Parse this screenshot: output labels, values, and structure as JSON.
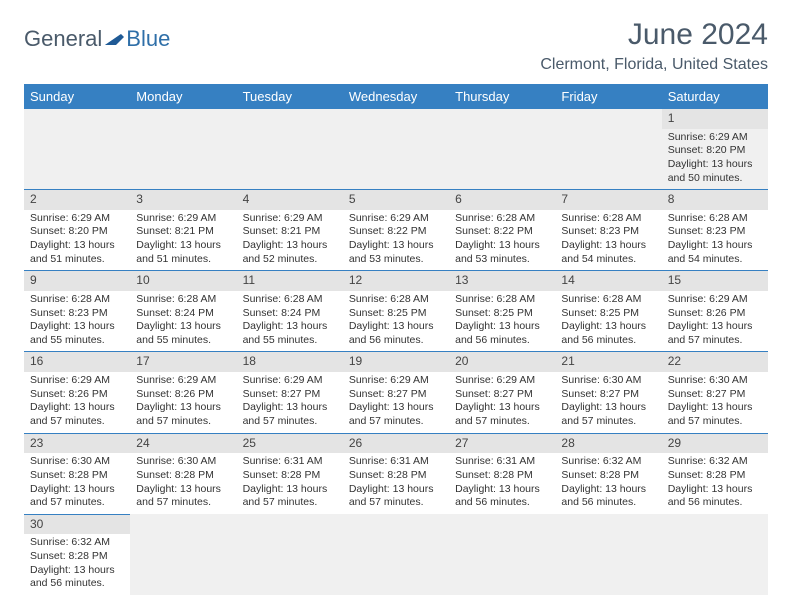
{
  "logo": {
    "text1": "General",
    "text2": "Blue"
  },
  "title": "June 2024",
  "location": "Clermont, Florida, United States",
  "header_color": "#3680c2",
  "day_headers": [
    "Sunday",
    "Monday",
    "Tuesday",
    "Wednesday",
    "Thursday",
    "Friday",
    "Saturday"
  ],
  "weeks": [
    [
      null,
      null,
      null,
      null,
      null,
      null,
      {
        "n": "1",
        "sr": "Sunrise: 6:29 AM",
        "ss": "Sunset: 8:20 PM",
        "d1": "Daylight: 13 hours",
        "d2": "and 50 minutes."
      }
    ],
    [
      {
        "n": "2",
        "sr": "Sunrise: 6:29 AM",
        "ss": "Sunset: 8:20 PM",
        "d1": "Daylight: 13 hours",
        "d2": "and 51 minutes."
      },
      {
        "n": "3",
        "sr": "Sunrise: 6:29 AM",
        "ss": "Sunset: 8:21 PM",
        "d1": "Daylight: 13 hours",
        "d2": "and 51 minutes."
      },
      {
        "n": "4",
        "sr": "Sunrise: 6:29 AM",
        "ss": "Sunset: 8:21 PM",
        "d1": "Daylight: 13 hours",
        "d2": "and 52 minutes."
      },
      {
        "n": "5",
        "sr": "Sunrise: 6:29 AM",
        "ss": "Sunset: 8:22 PM",
        "d1": "Daylight: 13 hours",
        "d2": "and 53 minutes."
      },
      {
        "n": "6",
        "sr": "Sunrise: 6:28 AM",
        "ss": "Sunset: 8:22 PM",
        "d1": "Daylight: 13 hours",
        "d2": "and 53 minutes."
      },
      {
        "n": "7",
        "sr": "Sunrise: 6:28 AM",
        "ss": "Sunset: 8:23 PM",
        "d1": "Daylight: 13 hours",
        "d2": "and 54 minutes."
      },
      {
        "n": "8",
        "sr": "Sunrise: 6:28 AM",
        "ss": "Sunset: 8:23 PM",
        "d1": "Daylight: 13 hours",
        "d2": "and 54 minutes."
      }
    ],
    [
      {
        "n": "9",
        "sr": "Sunrise: 6:28 AM",
        "ss": "Sunset: 8:23 PM",
        "d1": "Daylight: 13 hours",
        "d2": "and 55 minutes."
      },
      {
        "n": "10",
        "sr": "Sunrise: 6:28 AM",
        "ss": "Sunset: 8:24 PM",
        "d1": "Daylight: 13 hours",
        "d2": "and 55 minutes."
      },
      {
        "n": "11",
        "sr": "Sunrise: 6:28 AM",
        "ss": "Sunset: 8:24 PM",
        "d1": "Daylight: 13 hours",
        "d2": "and 55 minutes."
      },
      {
        "n": "12",
        "sr": "Sunrise: 6:28 AM",
        "ss": "Sunset: 8:25 PM",
        "d1": "Daylight: 13 hours",
        "d2": "and 56 minutes."
      },
      {
        "n": "13",
        "sr": "Sunrise: 6:28 AM",
        "ss": "Sunset: 8:25 PM",
        "d1": "Daylight: 13 hours",
        "d2": "and 56 minutes."
      },
      {
        "n": "14",
        "sr": "Sunrise: 6:28 AM",
        "ss": "Sunset: 8:25 PM",
        "d1": "Daylight: 13 hours",
        "d2": "and 56 minutes."
      },
      {
        "n": "15",
        "sr": "Sunrise: 6:29 AM",
        "ss": "Sunset: 8:26 PM",
        "d1": "Daylight: 13 hours",
        "d2": "and 57 minutes."
      }
    ],
    [
      {
        "n": "16",
        "sr": "Sunrise: 6:29 AM",
        "ss": "Sunset: 8:26 PM",
        "d1": "Daylight: 13 hours",
        "d2": "and 57 minutes."
      },
      {
        "n": "17",
        "sr": "Sunrise: 6:29 AM",
        "ss": "Sunset: 8:26 PM",
        "d1": "Daylight: 13 hours",
        "d2": "and 57 minutes."
      },
      {
        "n": "18",
        "sr": "Sunrise: 6:29 AM",
        "ss": "Sunset: 8:27 PM",
        "d1": "Daylight: 13 hours",
        "d2": "and 57 minutes."
      },
      {
        "n": "19",
        "sr": "Sunrise: 6:29 AM",
        "ss": "Sunset: 8:27 PM",
        "d1": "Daylight: 13 hours",
        "d2": "and 57 minutes."
      },
      {
        "n": "20",
        "sr": "Sunrise: 6:29 AM",
        "ss": "Sunset: 8:27 PM",
        "d1": "Daylight: 13 hours",
        "d2": "and 57 minutes."
      },
      {
        "n": "21",
        "sr": "Sunrise: 6:30 AM",
        "ss": "Sunset: 8:27 PM",
        "d1": "Daylight: 13 hours",
        "d2": "and 57 minutes."
      },
      {
        "n": "22",
        "sr": "Sunrise: 6:30 AM",
        "ss": "Sunset: 8:27 PM",
        "d1": "Daylight: 13 hours",
        "d2": "and 57 minutes."
      }
    ],
    [
      {
        "n": "23",
        "sr": "Sunrise: 6:30 AM",
        "ss": "Sunset: 8:28 PM",
        "d1": "Daylight: 13 hours",
        "d2": "and 57 minutes."
      },
      {
        "n": "24",
        "sr": "Sunrise: 6:30 AM",
        "ss": "Sunset: 8:28 PM",
        "d1": "Daylight: 13 hours",
        "d2": "and 57 minutes."
      },
      {
        "n": "25",
        "sr": "Sunrise: 6:31 AM",
        "ss": "Sunset: 8:28 PM",
        "d1": "Daylight: 13 hours",
        "d2": "and 57 minutes."
      },
      {
        "n": "26",
        "sr": "Sunrise: 6:31 AM",
        "ss": "Sunset: 8:28 PM",
        "d1": "Daylight: 13 hours",
        "d2": "and 57 minutes."
      },
      {
        "n": "27",
        "sr": "Sunrise: 6:31 AM",
        "ss": "Sunset: 8:28 PM",
        "d1": "Daylight: 13 hours",
        "d2": "and 56 minutes."
      },
      {
        "n": "28",
        "sr": "Sunrise: 6:32 AM",
        "ss": "Sunset: 8:28 PM",
        "d1": "Daylight: 13 hours",
        "d2": "and 56 minutes."
      },
      {
        "n": "29",
        "sr": "Sunrise: 6:32 AM",
        "ss": "Sunset: 8:28 PM",
        "d1": "Daylight: 13 hours",
        "d2": "and 56 minutes."
      }
    ],
    [
      {
        "n": "30",
        "sr": "Sunrise: 6:32 AM",
        "ss": "Sunset: 8:28 PM",
        "d1": "Daylight: 13 hours",
        "d2": "and 56 minutes."
      },
      null,
      null,
      null,
      null,
      null,
      null
    ]
  ]
}
